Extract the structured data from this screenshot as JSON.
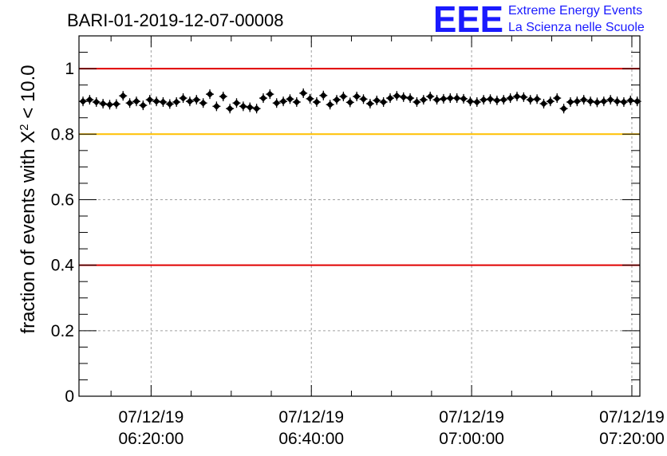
{
  "header": {
    "title": "BARI-01-2019-12-07-00008",
    "logo_text": "EEE",
    "logo_line1": "Extreme Energy Events",
    "logo_line2": "La Scienza nelle Scuole"
  },
  "colors": {
    "logo": "#1a1aff",
    "red_line": "#e00000",
    "yellow_line": "#ffc000",
    "markers": "#000000"
  },
  "chart_data": {
    "type": "scatter",
    "title": "BARI-01-2019-12-07-00008",
    "ylabel_prefix": "fraction of events with ",
    "ylabel_symbol": "X",
    "ylabel_exponent": "2",
    "ylabel_suffix": " < 10.0",
    "xlabel": "",
    "x_start": "2019-12-07 06:11:00",
    "x_end": "2019-12-07 07:21:00",
    "ylim": [
      0,
      1.1
    ],
    "grid": true,
    "y_ticks": [
      {
        "value": 0,
        "label": "0"
      },
      {
        "value": 0.2,
        "label": "0.2"
      },
      {
        "value": 0.4,
        "label": "0.4"
      },
      {
        "value": 0.6,
        "label": "0.6"
      },
      {
        "value": 0.8,
        "label": "0.8"
      },
      {
        "value": 1,
        "label": "1"
      }
    ],
    "x_ticks": [
      {
        "time": "2019-12-07 06:20:00",
        "date_label": "07/12/19",
        "time_label": "06:20:00"
      },
      {
        "time": "2019-12-07 06:40:00",
        "date_label": "07/12/19",
        "time_label": "06:40:00"
      },
      {
        "time": "2019-12-07 07:00:00",
        "date_label": "07/12/19",
        "time_label": "07:00:00"
      },
      {
        "time": "2019-12-07 07:20:00",
        "date_label": "07/12/19",
        "time_label": "07:20:00"
      }
    ],
    "reference_lines": [
      {
        "value": 1.0,
        "color": "#e00000"
      },
      {
        "value": 0.8,
        "color": "#ffc000"
      },
      {
        "value": 0.4,
        "color": "#e00000"
      }
    ],
    "series": [
      {
        "x": [
          "06:11:30",
          "06:12:20",
          "06:13:10",
          "06:14:00",
          "06:14:50",
          "06:15:40",
          "06:16:30",
          "06:17:20",
          "06:18:10",
          "06:19:00",
          "06:19:50",
          "06:20:40",
          "06:21:30",
          "06:22:20",
          "06:23:10",
          "06:24:00",
          "06:24:50",
          "06:25:40",
          "06:26:30",
          "06:27:20",
          "06:28:10",
          "06:29:00",
          "06:29:50",
          "06:30:40",
          "06:31:30",
          "06:32:20",
          "06:33:10",
          "06:34:00",
          "06:34:50",
          "06:35:40",
          "06:36:30",
          "06:37:20",
          "06:38:10",
          "06:39:00",
          "06:39:50",
          "06:40:40",
          "06:41:30",
          "06:42:20",
          "06:43:10",
          "06:44:00",
          "06:44:50",
          "06:45:40",
          "06:46:30",
          "06:47:20",
          "06:48:10",
          "06:49:00",
          "06:49:50",
          "06:50:40",
          "06:51:30",
          "06:52:20",
          "06:53:10",
          "06:54:00",
          "06:54:50",
          "06:55:40",
          "06:56:30",
          "06:57:20",
          "06:58:10",
          "06:59:00",
          "06:59:50",
          "07:00:40",
          "07:01:30",
          "07:02:20",
          "07:03:10",
          "07:04:00",
          "07:04:50",
          "07:05:40",
          "07:06:30",
          "07:07:20",
          "07:08:10",
          "07:09:00",
          "07:09:50",
          "07:10:40",
          "07:11:30",
          "07:12:20",
          "07:13:10",
          "07:14:00",
          "07:14:50",
          "07:15:40",
          "07:16:30",
          "07:17:20",
          "07:18:10",
          "07:19:00",
          "07:19:50",
          "07:20:40"
        ],
        "y": [
          0.9,
          0.905,
          0.898,
          0.893,
          0.89,
          0.892,
          0.917,
          0.895,
          0.9,
          0.888,
          0.905,
          0.9,
          0.898,
          0.892,
          0.898,
          0.91,
          0.9,
          0.905,
          0.895,
          0.922,
          0.885,
          0.915,
          0.878,
          0.895,
          0.885,
          0.882,
          0.878,
          0.91,
          0.922,
          0.895,
          0.9,
          0.907,
          0.898,
          0.925,
          0.908,
          0.898,
          0.918,
          0.89,
          0.905,
          0.915,
          0.897,
          0.915,
          0.907,
          0.893,
          0.903,
          0.898,
          0.91,
          0.917,
          0.913,
          0.91,
          0.898,
          0.905,
          0.915,
          0.905,
          0.908,
          0.91,
          0.91,
          0.908,
          0.9,
          0.898,
          0.905,
          0.907,
          0.903,
          0.905,
          0.91,
          0.915,
          0.913,
          0.905,
          0.907,
          0.893,
          0.9,
          0.91,
          0.878,
          0.898,
          0.9,
          0.905,
          0.9,
          0.897,
          0.9,
          0.905,
          0.9,
          0.898,
          0.903,
          0.9
        ]
      }
    ]
  }
}
